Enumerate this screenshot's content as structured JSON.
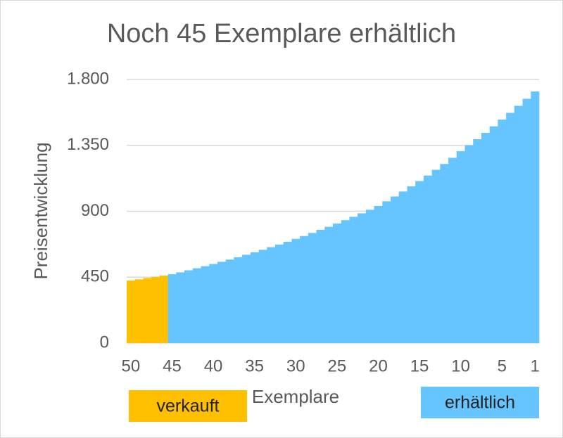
{
  "chart_data": {
    "type": "bar",
    "title": "Noch 45 Exemplare erhältlich",
    "x_label": "Exemplare",
    "y_label": "Preisentwicklung",
    "categories": [
      50,
      null,
      null,
      null,
      null,
      45,
      null,
      null,
      null,
      null,
      40,
      null,
      null,
      null,
      null,
      35,
      null,
      null,
      null,
      null,
      30,
      null,
      null,
      null,
      null,
      25,
      null,
      null,
      null,
      null,
      20,
      null,
      null,
      null,
      null,
      15,
      null,
      null,
      null,
      null,
      10,
      null,
      null,
      null,
      null,
      5,
      null,
      null,
      null,
      1
    ],
    "series": [
      {
        "name": "verkauft",
        "color": "#FFC000",
        "values": [
          427,
          435,
          444,
          452,
          461,
          null,
          null,
          null,
          null,
          null,
          null,
          null,
          null,
          null,
          null,
          null,
          null,
          null,
          null,
          null,
          null,
          null,
          null,
          null,
          null,
          null,
          null,
          null,
          null,
          null,
          null,
          null,
          null,
          null,
          null,
          null,
          null,
          null,
          null,
          null,
          null,
          null,
          null,
          null,
          null,
          null,
          null,
          null,
          null,
          null
        ]
      },
      {
        "name": "erhältlich",
        "color": "#66C5FF",
        "values": [
          null,
          null,
          null,
          null,
          null,
          470,
          483,
          497,
          511,
          525,
          540,
          555,
          570,
          586,
          603,
          620,
          637,
          655,
          673,
          692,
          712,
          731,
          752,
          773,
          794,
          816,
          839,
          862,
          886,
          910,
          936,
          968,
          1001,
          1035,
          1070,
          1106,
          1144,
          1183,
          1223,
          1265,
          1310,
          1351,
          1392,
          1435,
          1480,
          1526,
          1572,
          1620,
          1668,
          1718
        ]
      }
    ],
    "ylim": [
      0,
      1800
    ],
    "yticks": [
      0,
      450,
      900,
      {
        "value": 1350,
        "label": "1.350"
      },
      {
        "value": 1800,
        "label": "1.800"
      }
    ],
    "grid": true
  }
}
